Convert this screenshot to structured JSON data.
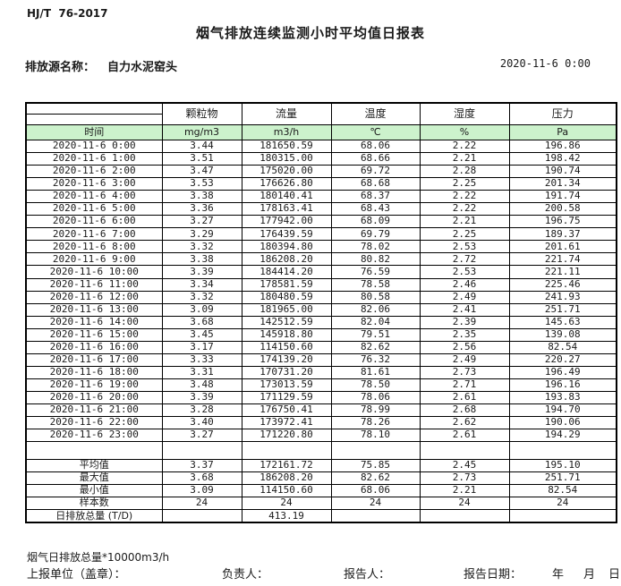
{
  "page": {
    "standard": "HJ/T  76-2017",
    "title": "烟气排放连续监测小时平均值日报表",
    "source_label": "排放源名称：",
    "source_name": "自力水泥窑头",
    "datetime": "2020-11-6 0:00"
  },
  "colors": {
    "header_green": "#ccf2cc",
    "border": "#000000"
  },
  "table": {
    "time_header": "时间",
    "col_headers": [
      "颗粒物",
      "流量",
      "温度",
      "湿度",
      "压力"
    ],
    "units": [
      "mg/m3",
      "m3/h",
      "℃",
      "%",
      "Pa"
    ],
    "rows": [
      {
        "time": "2020-11-6 0:00",
        "values": [
          "3.44",
          "181650.59",
          "68.06",
          "2.22",
          "196.86"
        ]
      },
      {
        "time": "2020-11-6 1:00",
        "values": [
          "3.51",
          "180315.00",
          "68.66",
          "2.21",
          "198.42"
        ]
      },
      {
        "time": "2020-11-6 2:00",
        "values": [
          "3.47",
          "175020.00",
          "69.72",
          "2.28",
          "190.74"
        ]
      },
      {
        "time": "2020-11-6 3:00",
        "values": [
          "3.53",
          "176626.80",
          "68.68",
          "2.25",
          "201.34"
        ]
      },
      {
        "time": "2020-11-6 4:00",
        "values": [
          "3.38",
          "180140.41",
          "68.37",
          "2.22",
          "191.74"
        ]
      },
      {
        "time": "2020-11-6 5:00",
        "values": [
          "3.36",
          "178163.41",
          "68.43",
          "2.22",
          "200.58"
        ]
      },
      {
        "time": "2020-11-6 6:00",
        "values": [
          "3.27",
          "177942.00",
          "68.09",
          "2.21",
          "196.75"
        ]
      },
      {
        "time": "2020-11-6 7:00",
        "values": [
          "3.29",
          "176439.59",
          "69.79",
          "2.25",
          "189.37"
        ]
      },
      {
        "time": "2020-11-6 8:00",
        "values": [
          "3.32",
          "180394.80",
          "78.02",
          "2.53",
          "201.61"
        ]
      },
      {
        "time": "2020-11-6 9:00",
        "values": [
          "3.38",
          "186208.20",
          "80.82",
          "2.72",
          "221.74"
        ]
      },
      {
        "time": "2020-11-6 10:00",
        "values": [
          "3.39",
          "184414.20",
          "76.59",
          "2.53",
          "221.11"
        ]
      },
      {
        "time": "2020-11-6 11:00",
        "values": [
          "3.34",
          "178581.59",
          "78.58",
          "2.46",
          "225.46"
        ]
      },
      {
        "time": "2020-11-6 12:00",
        "values": [
          "3.32",
          "180480.59",
          "80.58",
          "2.49",
          "241.93"
        ]
      },
      {
        "time": "2020-11-6 13:00",
        "values": [
          "3.09",
          "181965.00",
          "82.06",
          "2.41",
          "251.71"
        ]
      },
      {
        "time": "2020-11-6 14:00",
        "values": [
          "3.68",
          "142512.59",
          "82.04",
          "2.39",
          "145.63"
        ]
      },
      {
        "time": "2020-11-6 15:00",
        "values": [
          "3.45",
          "145918.80",
          "79.51",
          "2.35",
          "139.08"
        ]
      },
      {
        "time": "2020-11-6 16:00",
        "values": [
          "3.17",
          "114150.60",
          "82.62",
          "2.56",
          "82.54"
        ]
      },
      {
        "time": "2020-11-6 17:00",
        "values": [
          "3.33",
          "174139.20",
          "76.32",
          "2.49",
          "220.27"
        ]
      },
      {
        "time": "2020-11-6 18:00",
        "values": [
          "3.31",
          "170731.20",
          "81.61",
          "2.73",
          "196.49"
        ]
      },
      {
        "time": "2020-11-6 19:00",
        "values": [
          "3.48",
          "173013.59",
          "78.50",
          "2.71",
          "196.16"
        ]
      },
      {
        "time": "2020-11-6 20:00",
        "values": [
          "3.39",
          "171129.59",
          "78.06",
          "2.61",
          "193.83"
        ]
      },
      {
        "time": "2020-11-6 21:00",
        "values": [
          "3.28",
          "176750.41",
          "78.99",
          "2.68",
          "194.70"
        ]
      },
      {
        "time": "2020-11-6 22:00",
        "values": [
          "3.40",
          "173972.41",
          "78.26",
          "2.62",
          "190.06"
        ]
      },
      {
        "time": "2020-11-6 23:00",
        "values": [
          "3.27",
          "171220.80",
          "78.10",
          "2.61",
          "194.29"
        ]
      }
    ],
    "summary": [
      {
        "label": "平均值",
        "values": [
          "3.37",
          "172161.72",
          "75.85",
          "2.45",
          "195.10"
        ]
      },
      {
        "label": "最大值",
        "values": [
          "3.68",
          "186208.20",
          "82.62",
          "2.73",
          "251.71"
        ]
      },
      {
        "label": "最小值",
        "values": [
          "3.09",
          "114150.60",
          "68.06",
          "2.21",
          "82.54"
        ]
      },
      {
        "label": "样本数",
        "values": [
          "24",
          "24",
          "24",
          "24",
          "24"
        ]
      },
      {
        "label": "日排放总量 (T/D)",
        "values": [
          "",
          "413.19",
          "",
          "",
          ""
        ]
      }
    ]
  },
  "footer": {
    "note": "烟气日排放总量*10000m3/h",
    "report_unit_label": "上报单位（盖章）：",
    "responsible_label": "负责人：",
    "reporter_label": "报告人：",
    "report_date_label": "报告日期：",
    "year_label": "年",
    "month_label": "月",
    "day_label": "日"
  }
}
